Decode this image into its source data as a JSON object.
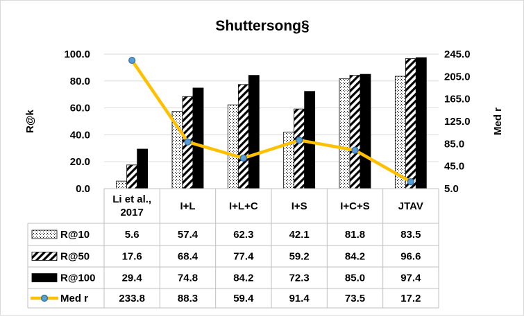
{
  "chart_data": {
    "type": "bar",
    "title": "Shuttersong§",
    "ylabel": "R@k",
    "y2label": "Med r",
    "categories": [
      "Li et al., 2017",
      "I+L",
      "I+L+C",
      "I+S",
      "I+C+S",
      "JTAV"
    ],
    "category_lines": [
      [
        "Li et al.,",
        "2017"
      ],
      [
        "I+L"
      ],
      [
        "I+L+C"
      ],
      [
        "I+S"
      ],
      [
        "I+C+S"
      ],
      [
        "JTAV"
      ]
    ],
    "ylim": [
      0,
      100
    ],
    "yticks": [
      "0.0",
      "20.0",
      "40.0",
      "60.0",
      "80.0",
      "100.0"
    ],
    "y2lim": [
      5,
      245
    ],
    "y2ticks": [
      "5.0",
      "45.0",
      "85.0",
      "125.0",
      "165.0",
      "205.0",
      "245.0"
    ],
    "series": [
      {
        "name": "R@10",
        "type": "bar",
        "pattern": "dots",
        "values": [
          5.6,
          57.4,
          62.3,
          42.1,
          81.8,
          83.5
        ],
        "labels": [
          "5.6",
          "57.4",
          "62.3",
          "42.1",
          "81.8",
          "83.5"
        ]
      },
      {
        "name": "R@50",
        "type": "bar",
        "pattern": "diagonal-stripes",
        "values": [
          17.6,
          68.4,
          77.4,
          59.2,
          84.2,
          96.6
        ],
        "labels": [
          "17.6",
          "68.4",
          "77.4",
          "59.2",
          "84.2",
          "96.6"
        ]
      },
      {
        "name": "R@100",
        "type": "bar",
        "pattern": "solid",
        "values": [
          29.4,
          74.8,
          84.2,
          72.3,
          85.0,
          97.4
        ],
        "labels": [
          "29.4",
          "74.8",
          "84.2",
          "72.3",
          "85.0",
          "97.4"
        ]
      },
      {
        "name": "Med r",
        "type": "line",
        "axis": "secondary",
        "values": [
          233.8,
          88.3,
          59.4,
          91.4,
          73.5,
          17.2
        ],
        "labels": [
          "233.8",
          "88.3",
          "59.4",
          "91.4",
          "73.5",
          "17.2"
        ]
      }
    ],
    "grid": true,
    "legend": "data-table",
    "colors": {
      "line": "#FFC000",
      "marker": "#5B9BD5",
      "marker_edge": "#2E6DA4",
      "bar_solid": "#000000",
      "grid": "#D9D9D9",
      "table_border": "#BFBFBF"
    }
  }
}
